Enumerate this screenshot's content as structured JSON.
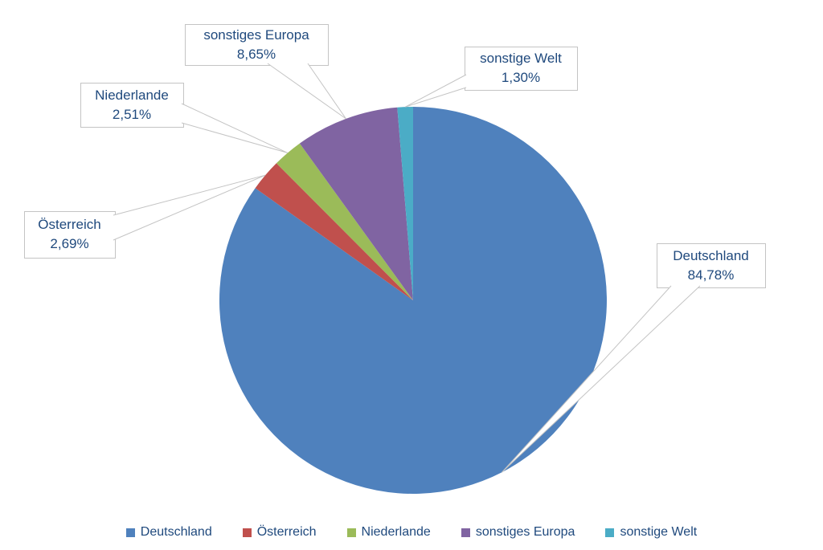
{
  "chart_data": {
    "type": "pie",
    "title": "",
    "categories": [
      "Deutschland",
      "Österreich",
      "Niederlande",
      "sonstiges Europa",
      "sonstige Welt"
    ],
    "values": [
      84.78,
      2.69,
      2.51,
      8.65,
      1.3
    ],
    "value_labels": [
      "84,78%",
      "2,69%",
      "2,51%",
      "8,65%",
      "1,30%"
    ],
    "colors": [
      "#4F81BD",
      "#C0504D",
      "#9BBB59",
      "#8064A2",
      "#4BACC6"
    ],
    "start_angle_deg": 0,
    "direction": "clockwise",
    "legend_position": "bottom",
    "data_label_style": "callout box with category name and percent",
    "text_color": "#1F497D",
    "line_color": "#C4C4C4",
    "background": "#FFFFFF"
  }
}
